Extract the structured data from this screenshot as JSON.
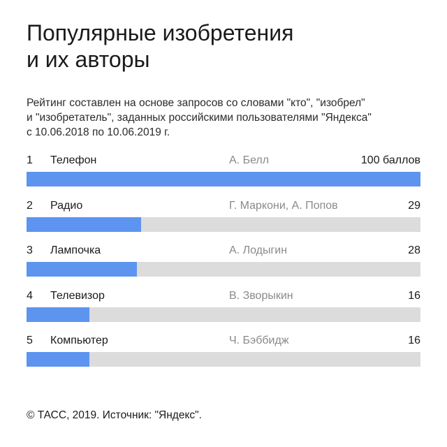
{
  "title_lines": [
    "Популярные изобретения",
    "и их авторы"
  ],
  "subtitle_lines": [
    "Рейтинг составлен на основе запросов со словами \"кто\", \"изобрел\"",
    "и \"изобретатель\", заданных российскими пользователями \"Яндекса\"",
    "с 10.06.2018 по 10.06.2019 г."
  ],
  "footer": "© ТАСС, 2019. Источник: \"Яндекс\".",
  "colors": {
    "bar_fill": "#5c94f0",
    "bar_track": "#dcdcdc",
    "author_text": "#8a8a8a"
  },
  "chart_data": {
    "type": "bar",
    "orientation": "horizontal",
    "max_value": 100,
    "rows": [
      {
        "rank": "1",
        "name": "Телефон",
        "author": "А. Белл",
        "value": 100,
        "value_label": "100 баллов"
      },
      {
        "rank": "2",
        "name": "Радио",
        "author": "Г. Маркони, А. Попов",
        "value": 29,
        "value_label": "29"
      },
      {
        "rank": "3",
        "name": "Лампочка",
        "author": "А. Лодыгин",
        "value": 28,
        "value_label": "28"
      },
      {
        "rank": "4",
        "name": "Телевизор",
        "author": "В. Зворыкин",
        "value": 16,
        "value_label": "16"
      },
      {
        "rank": "5",
        "name": "Компьютер",
        "author": "Ч. Бэббидж",
        "value": 16,
        "value_label": "16"
      }
    ]
  }
}
